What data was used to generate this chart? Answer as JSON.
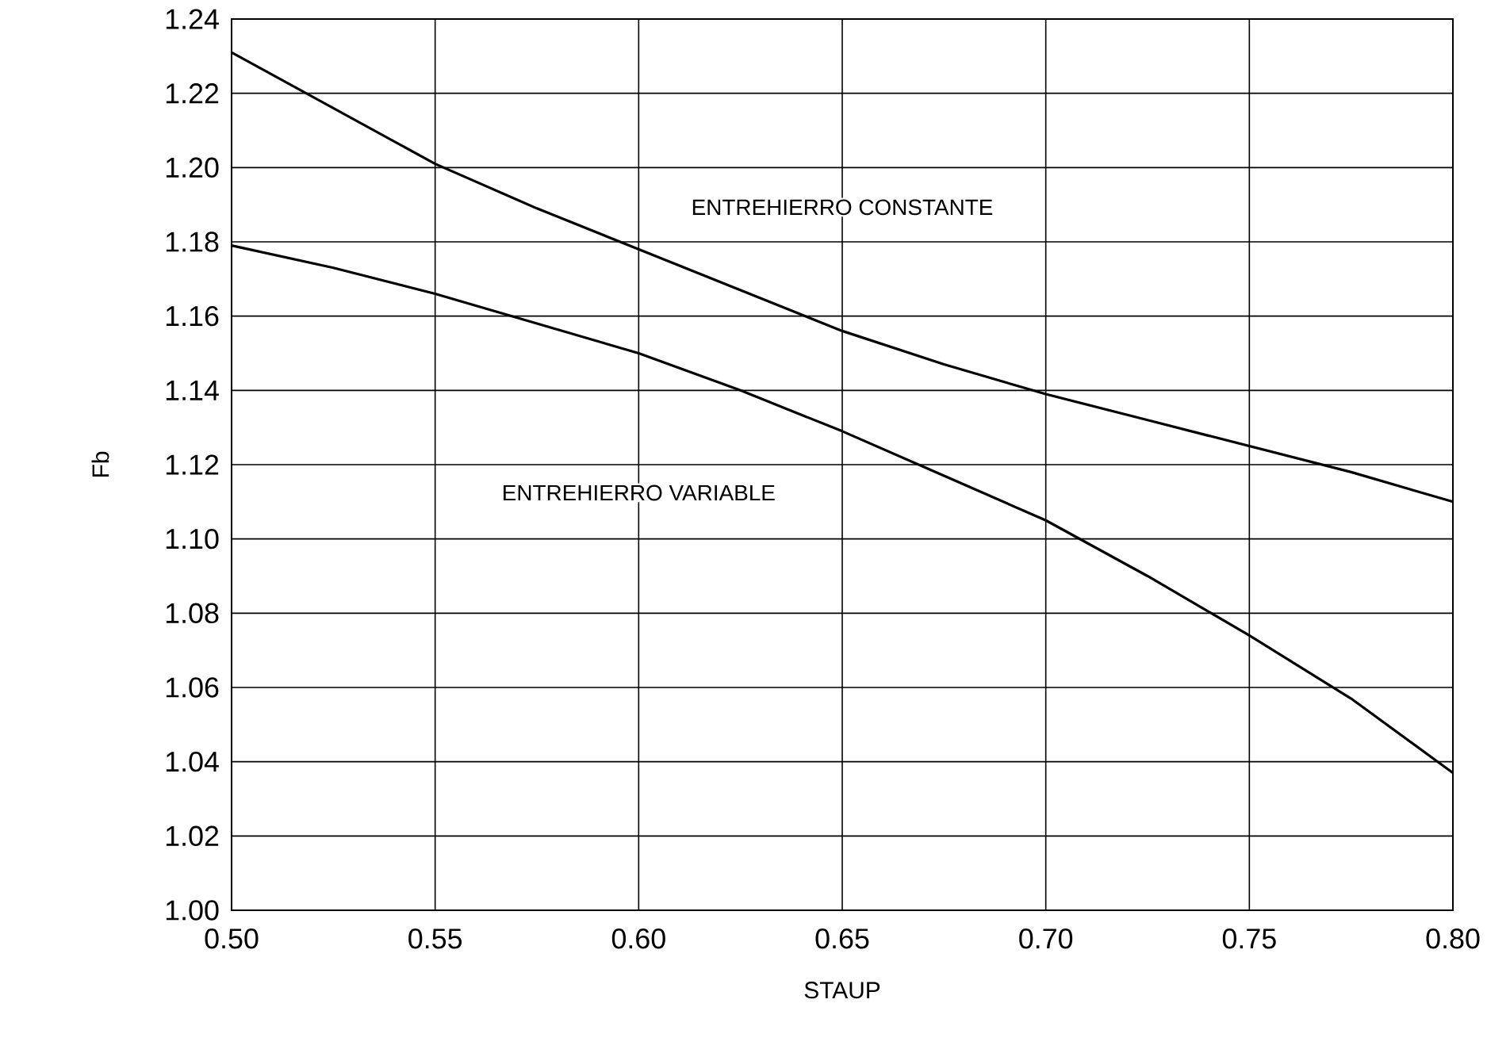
{
  "chart_data": {
    "type": "line",
    "xlabel": "STAUP",
    "ylabel": "Fb",
    "x": [
      0.5,
      0.525,
      0.55,
      0.575,
      0.6,
      0.625,
      0.65,
      0.675,
      0.7,
      0.725,
      0.75,
      0.775,
      0.8
    ],
    "series": [
      {
        "color": "#000000",
        "values": [
          1.231,
          1.216,
          1.201,
          1.189,
          1.178,
          1.167,
          1.156,
          1.147,
          1.139,
          1.132,
          1.125,
          1.118,
          1.11
        ]
      },
      {
        "color": "#000000",
        "values": [
          1.179,
          1.173,
          1.166,
          1.158,
          1.15,
          1.14,
          1.129,
          1.117,
          1.105,
          1.09,
          1.074,
          1.057,
          1.037
        ]
      }
    ],
    "xlim": [
      0.5,
      0.8
    ],
    "ylim": [
      1.0,
      1.24
    ],
    "xticks": [
      {
        "value": 0.5,
        "label": "0.50"
      },
      {
        "value": 0.55,
        "label": "0.55"
      },
      {
        "value": 0.6,
        "label": "0.60"
      },
      {
        "value": 0.65,
        "label": "0.65"
      },
      {
        "value": 0.7,
        "label": "0.70"
      },
      {
        "value": 0.75,
        "label": "0.75"
      },
      {
        "value": 0.8,
        "label": "0.80"
      }
    ],
    "yticks": [
      {
        "value": 1.0,
        "label": "1.00"
      },
      {
        "value": 1.02,
        "label": "1.02"
      },
      {
        "value": 1.04,
        "label": "1.04"
      },
      {
        "value": 1.06,
        "label": "1.06"
      },
      {
        "value": 1.08,
        "label": "1.08"
      },
      {
        "value": 1.1,
        "label": "1.10"
      },
      {
        "value": 1.12,
        "label": "1.12"
      },
      {
        "value": 1.14,
        "label": "1.14"
      },
      {
        "value": 1.16,
        "label": "1.16"
      },
      {
        "value": 1.18,
        "label": "1.18"
      },
      {
        "value": 1.2,
        "label": "1.20"
      },
      {
        "value": 1.22,
        "label": "1.22"
      },
      {
        "value": 1.24,
        "label": "1.24"
      }
    ],
    "annotations": [
      "ENTREHIERRO CONSTANTE",
      "ENTREHIERRO VARIABLE"
    ],
    "grid": true,
    "legend": false,
    "marker": "none",
    "line_style": "solid"
  }
}
